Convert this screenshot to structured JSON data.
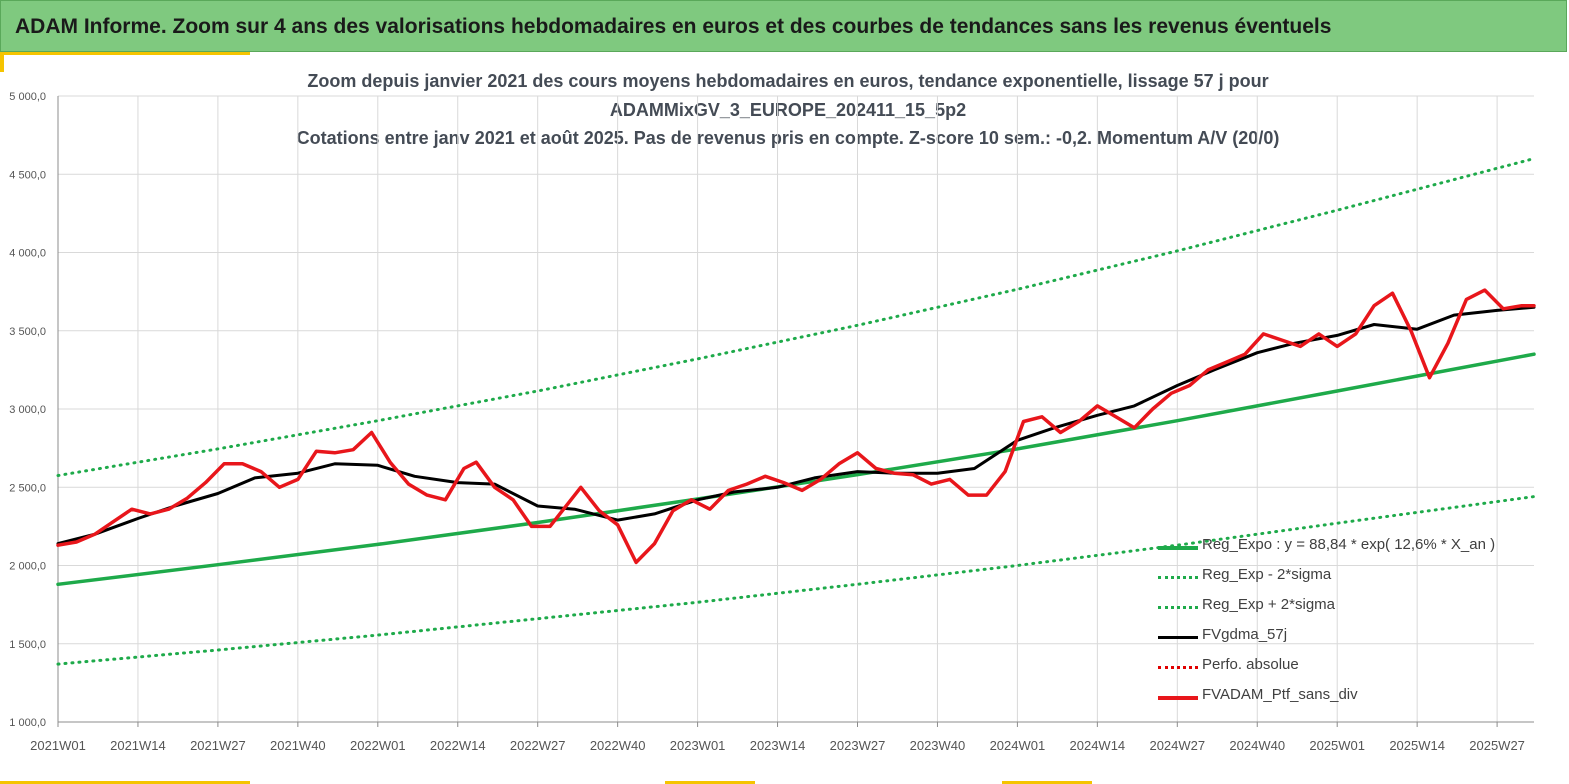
{
  "banner": {
    "title": "ADAM Informe. Zoom sur 4 ans des valorisations hebdomadaires en euros et des courbes de tendances sans les revenus éventuels"
  },
  "chart_data": {
    "type": "line",
    "title_lines": [
      "Zoom depuis janvier 2021 des cours moyens hebdomadaires  en euros, tendance exponentielle, lissage 57 j pour",
      "ADAMMixGV_3_EUROPE_202411_15_5p2",
      "Cotations entre janv 2021 et août 2025. Pas de revenus pris en compte. Z-score 10 sem.: -0,2. Momentum A/V (20/0)"
    ],
    "ylim": [
      1000,
      5000
    ],
    "y_ticks": [
      "1 000,0",
      "1 500,0",
      "2 000,0",
      "2 500,0",
      "3 000,0",
      "3 500,0",
      "4 000,0",
      "4 500,0",
      "5 000,0"
    ],
    "x_tick_labels": [
      "2021W01",
      "2021W14",
      "2021W27",
      "2021W40",
      "2022W01",
      "2022W14",
      "2022W27",
      "2022W40",
      "2023W01",
      "2023W14",
      "2023W27",
      "2023W40",
      "2024W01",
      "2024W14",
      "2024W27",
      "2024W40",
      "2025W01",
      "2025W14",
      "2025W27"
    ],
    "grid": true,
    "legend_position": "bottom-right",
    "series": [
      {
        "name": "Reg_Expo : y = 88,84 * exp( 12,6% *  X_an )",
        "color": "#1eaa4a",
        "style": "solid",
        "x": [
          "2021W01",
          "2021W27",
          "2022W01",
          "2022W27",
          "2023W01",
          "2023W27",
          "2024W01",
          "2024W27",
          "2025W01",
          "2025W33"
        ],
        "values": [
          1880,
          2005,
          2135,
          2275,
          2425,
          2580,
          2745,
          2925,
          3115,
          3350
        ]
      },
      {
        "name": "Reg_Exp - 2*sigma",
        "color": "#1eaa4a",
        "style": "dotted",
        "x": [
          "2021W01",
          "2021W27",
          "2022W01",
          "2022W27",
          "2023W01",
          "2023W27",
          "2024W01",
          "2024W27",
          "2025W01",
          "2025W33"
        ],
        "values": [
          1370,
          1460,
          1555,
          1660,
          1765,
          1880,
          2000,
          2130,
          2270,
          2440
        ]
      },
      {
        "name": "Reg_Exp + 2*sigma",
        "color": "#1eaa4a",
        "style": "dotted",
        "x": [
          "2021W01",
          "2021W27",
          "2022W01",
          "2022W27",
          "2023W01",
          "2023W27",
          "2024W01",
          "2024W27",
          "2025W01",
          "2025W33"
        ],
        "values": [
          2575,
          2745,
          2925,
          3115,
          3320,
          3535,
          3765,
          4010,
          4270,
          4600
        ]
      },
      {
        "name": "FVgdma_57j",
        "color": "#000000",
        "style": "solid",
        "x": [
          "2021W01",
          "2021W07",
          "2021W14",
          "2021W20",
          "2021W27",
          "2021W33",
          "2021W40",
          "2021W46",
          "2022W01",
          "2022W07",
          "2022W14",
          "2022W20",
          "2022W27",
          "2022W33",
          "2022W40",
          "2022W46",
          "2023W01",
          "2023W07",
          "2023W14",
          "2023W20",
          "2023W27",
          "2023W33",
          "2023W40",
          "2023W46",
          "2024W01",
          "2024W07",
          "2024W14",
          "2024W20",
          "2024W27",
          "2024W33",
          "2024W40",
          "2024W46",
          "2025W01",
          "2025W07",
          "2025W14",
          "2025W20",
          "2025W27",
          "2025W33"
        ],
        "values": [
          2140,
          2200,
          2300,
          2380,
          2460,
          2560,
          2590,
          2650,
          2640,
          2570,
          2530,
          2520,
          2380,
          2360,
          2290,
          2330,
          2420,
          2470,
          2500,
          2560,
          2600,
          2590,
          2590,
          2620,
          2800,
          2880,
          2960,
          3020,
          3150,
          3250,
          3360,
          3420,
          3470,
          3540,
          3510,
          3600,
          3630,
          3650
        ]
      },
      {
        "name": "Perfo. absolue",
        "color": "#e00000",
        "style": "dotted",
        "x": [],
        "values": []
      },
      {
        "name": "FVADAM_Ptf_sans_div",
        "color": "#e8161b",
        "style": "solid",
        "x": [
          "2021W01",
          "2021W04",
          "2021W07",
          "2021W10",
          "2021W13",
          "2021W16",
          "2021W19",
          "2021W22",
          "2021W25",
          "2021W28",
          "2021W31",
          "2021W34",
          "2021W37",
          "2021W40",
          "2021W43",
          "2021W46",
          "2021W49",
          "2021W52",
          "2022W03",
          "2022W06",
          "2022W09",
          "2022W12",
          "2022W15",
          "2022W17",
          "2022W20",
          "2022W23",
          "2022W26",
          "2022W29",
          "2022W32",
          "2022W34",
          "2022W37",
          "2022W40",
          "2022W43",
          "2022W46",
          "2022W49",
          "2022W52",
          "2023W03",
          "2023W06",
          "2023W09",
          "2023W12",
          "2023W15",
          "2023W18",
          "2023W21",
          "2023W24",
          "2023W27",
          "2023W30",
          "2023W33",
          "2023W36",
          "2023W39",
          "2023W42",
          "2023W45",
          "2023W48",
          "2023W51",
          "2024W02",
          "2024W05",
          "2024W08",
          "2024W11",
          "2024W14",
          "2024W17",
          "2024W20",
          "2024W23",
          "2024W26",
          "2024W29",
          "2024W32",
          "2024W35",
          "2024W38",
          "2024W41",
          "2024W44",
          "2024W47",
          "2024W50",
          "2025W01",
          "2025W04",
          "2025W07",
          "2025W10",
          "2025W13",
          "2025W16",
          "2025W19",
          "2025W22",
          "2025W25",
          "2025W28",
          "2025W31",
          "2025W33"
        ],
        "values": [
          2130,
          2150,
          2200,
          2280,
          2360,
          2330,
          2360,
          2430,
          2530,
          2650,
          2650,
          2600,
          2500,
          2550,
          2730,
          2720,
          2740,
          2850,
          2660,
          2520,
          2450,
          2420,
          2620,
          2660,
          2500,
          2420,
          2250,
          2250,
          2400,
          2500,
          2350,
          2260,
          2020,
          2140,
          2350,
          2420,
          2360,
          2480,
          2520,
          2570,
          2530,
          2480,
          2550,
          2650,
          2720,
          2620,
          2590,
          2580,
          2520,
          2550,
          2450,
          2450,
          2600,
          2920,
          2950,
          2850,
          2920,
          3020,
          2950,
          2880,
          3000,
          3100,
          3150,
          3250,
          3300,
          3350,
          3480,
          3440,
          3400,
          3480,
          3400,
          3480,
          3660,
          3740,
          3500,
          3200,
          3420,
          3700,
          3760,
          3640,
          3660,
          3660
        ]
      }
    ]
  }
}
